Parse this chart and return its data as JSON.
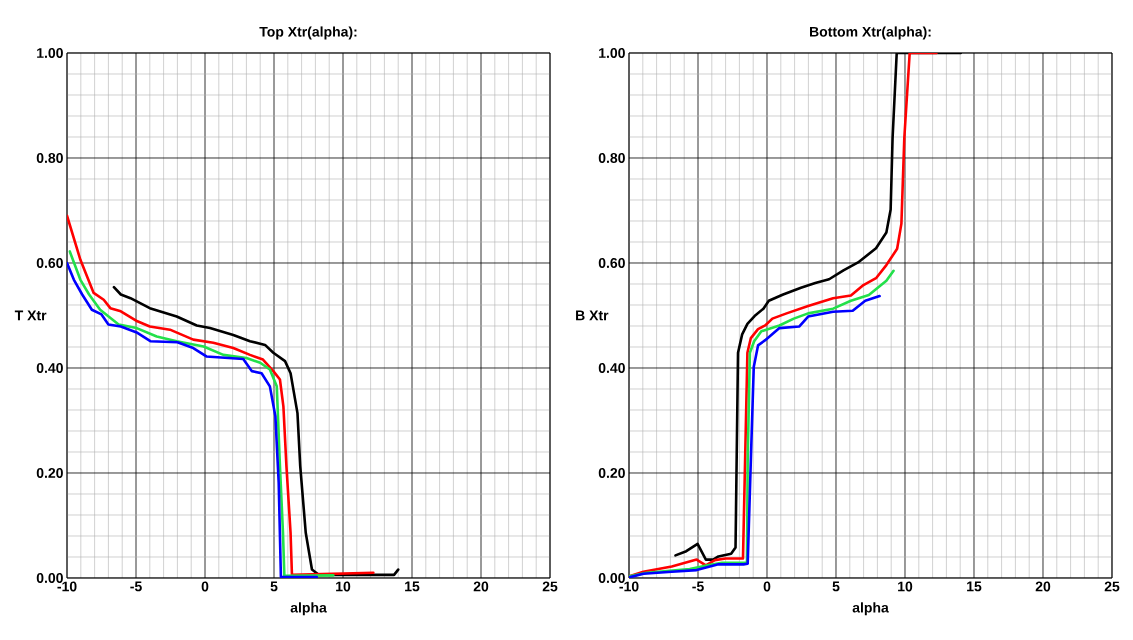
{
  "chart_data": [
    {
      "type": "line",
      "title": "Top Xtr(alpha):",
      "xlabel": "alpha",
      "ylabel": "T Xtr",
      "xlim": [
        -10,
        25
      ],
      "ylim": [
        0,
        1
      ],
      "xticks": [
        -10,
        -5,
        0,
        5,
        10,
        15,
        20,
        25
      ],
      "yticks": [
        {
          "value": 0,
          "label": "0.00"
        },
        {
          "value": 0.2,
          "label": "0.20"
        },
        {
          "value": 0.4,
          "label": "0.40"
        },
        {
          "value": 0.6,
          "label": "0.60"
        },
        {
          "value": 0.8,
          "label": "0.80"
        },
        {
          "value": 1,
          "label": "1.00"
        }
      ],
      "grid": true,
      "series": [
        {
          "color": "#000000",
          "x": [
            -6.6,
            -6.1,
            -5.4,
            -4.0,
            -2.05,
            -0.6,
            0.36,
            2.05,
            3.26,
            4.35,
            4.95,
            5.8,
            6.2,
            6.7,
            6.9,
            7.3,
            7.75,
            8.24,
            13.7,
            14.0
          ],
          "values": [
            0.554,
            0.54,
            0.533,
            0.514,
            0.498,
            0.481,
            0.476,
            0.463,
            0.451,
            0.444,
            0.429,
            0.413,
            0.39,
            0.314,
            0.213,
            0.086,
            0.016,
            0.006,
            0.006,
            0.016
          ]
        },
        {
          "color": "#ff0000",
          "x": [
            -10,
            -9.03,
            -8.07,
            -7.34,
            -6.86,
            -6.1,
            -4.9,
            -4.0,
            -2.54,
            -0.85,
            0.6,
            2.05,
            3.26,
            4.2,
            4.95,
            5.43,
            5.68,
            5.9,
            6.2,
            6.3,
            12.2
          ],
          "values": [
            0.69,
            0.606,
            0.543,
            0.53,
            0.514,
            0.508,
            0.489,
            0.479,
            0.473,
            0.454,
            0.448,
            0.438,
            0.425,
            0.416,
            0.394,
            0.378,
            0.327,
            0.213,
            0.086,
            0.006,
            0.01
          ]
        },
        {
          "color": "#22e04a",
          "x": [
            -9.8,
            -9.03,
            -8.4,
            -7.6,
            -6.26,
            -4.95,
            -3.5,
            -2.05,
            -0.1,
            1.33,
            3.0,
            4.0,
            4.7,
            5.2,
            5.43,
            5.65,
            5.75,
            9.3
          ],
          "values": [
            0.622,
            0.568,
            0.54,
            0.511,
            0.483,
            0.476,
            0.46,
            0.451,
            0.441,
            0.425,
            0.419,
            0.41,
            0.397,
            0.365,
            0.213,
            0.086,
            0.004,
            0.005
          ]
        },
        {
          "color": "#0000ff",
          "x": [
            -10,
            -9.5,
            -8.9,
            -8.2,
            -7.5,
            -7.0,
            -6.1,
            -4.9,
            -3.96,
            -2.0,
            -0.85,
            0.1,
            2.77,
            3.4,
            4.1,
            4.7,
            5.1,
            5.34,
            5.5,
            8.1
          ],
          "values": [
            0.6,
            0.568,
            0.54,
            0.511,
            0.502,
            0.483,
            0.479,
            0.467,
            0.451,
            0.449,
            0.438,
            0.422,
            0.417,
            0.394,
            0.39,
            0.365,
            0.308,
            0.181,
            0.002,
            0.002
          ]
        }
      ]
    },
    {
      "type": "line",
      "title": "Bottom Xtr(alpha):",
      "xlabel": "alpha",
      "ylabel": "B Xtr",
      "xlim": [
        -10,
        25
      ],
      "ylim": [
        0,
        1
      ],
      "xticks": [
        -10,
        -5,
        0,
        5,
        10,
        15,
        20,
        25
      ],
      "yticks": [
        {
          "value": 0,
          "label": "0.00"
        },
        {
          "value": 0.2,
          "label": "0.20"
        },
        {
          "value": 0.4,
          "label": "0.40"
        },
        {
          "value": 0.6,
          "label": "0.60"
        },
        {
          "value": 0.8,
          "label": "0.80"
        },
        {
          "value": 1,
          "label": "1.00"
        }
      ],
      "grid": true,
      "series": [
        {
          "color": "#000000",
          "x": [
            -6.63,
            -5.85,
            -5.03,
            -4.43,
            -3.9,
            -3.52,
            -2.6,
            -2.28,
            -2.1,
            -1.8,
            -1.42,
            -0.9,
            -0.26,
            0.13,
            1.17,
            2.46,
            3.5,
            4.5,
            5.54,
            6.6,
            7.9,
            8.65,
            8.96,
            9.1,
            9.4,
            14.04
          ],
          "values": [
            0.043,
            0.051,
            0.065,
            0.035,
            0.035,
            0.041,
            0.046,
            0.058,
            0.429,
            0.464,
            0.484,
            0.499,
            0.513,
            0.528,
            0.54,
            0.553,
            0.562,
            0.569,
            0.586,
            0.601,
            0.628,
            0.658,
            0.702,
            0.838,
            1.0,
            1.0
          ]
        },
        {
          "color": "#ff0000",
          "x": [
            -10,
            -8.96,
            -6.9,
            -5.1,
            -4.43,
            -3.78,
            -3.0,
            -1.74,
            -1.42,
            -1.17,
            -0.65,
            -0.13,
            0.39,
            1.42,
            2.98,
            4.79,
            6.08,
            6.99,
            7.9,
            8.65,
            9.43,
            9.74,
            9.95,
            10.34,
            12.28
          ],
          "values": [
            0.003,
            0.012,
            0.022,
            0.035,
            0.024,
            0.034,
            0.037,
            0.037,
            0.429,
            0.457,
            0.474,
            0.481,
            0.494,
            0.504,
            0.518,
            0.533,
            0.538,
            0.558,
            0.571,
            0.596,
            0.627,
            0.675,
            0.838,
            1.0,
            1.0
          ]
        },
        {
          "color": "#22e04a",
          "x": [
            -10,
            -8.7,
            -5.6,
            -4.3,
            -3.26,
            -1.45,
            -1.4,
            -1.24,
            -0.93,
            -0.41,
            0.9,
            1.94,
            2.98,
            4.79,
            6.08,
            7.38,
            8.65,
            9.17
          ],
          "values": [
            0.003,
            0.01,
            0.017,
            0.024,
            0.029,
            0.029,
            0.225,
            0.429,
            0.451,
            0.47,
            0.481,
            0.494,
            0.504,
            0.513,
            0.528,
            0.539,
            0.566,
            0.585
          ]
        },
        {
          "color": "#0000ff",
          "x": [
            -10,
            -8.96,
            -6.9,
            -5.1,
            -3.52,
            -1.7,
            -1.4,
            -1.17,
            -0.96,
            -0.65,
            -0.13,
            0.9,
            2.33,
            2.98,
            4.79,
            6.21,
            7.12,
            8.16
          ],
          "values": [
            0.001,
            0.008,
            0.012,
            0.015,
            0.026,
            0.026,
            0.027,
            0.225,
            0.402,
            0.443,
            0.453,
            0.476,
            0.479,
            0.498,
            0.507,
            0.509,
            0.528,
            0.537
          ]
        }
      ]
    }
  ]
}
